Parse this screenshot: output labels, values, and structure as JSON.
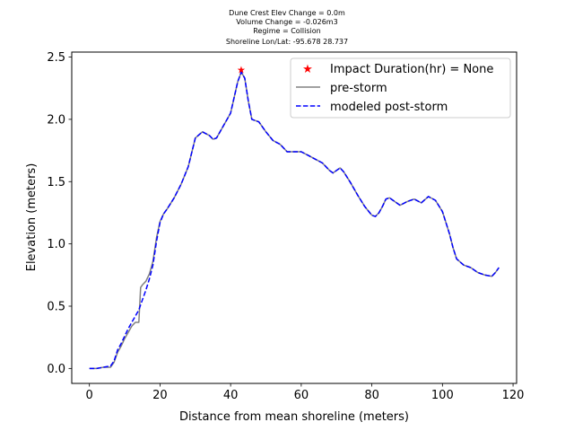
{
  "chart_data": {
    "type": "line",
    "title_lines": [
      "Dune Crest Elev Change = 0.0m",
      "Volume Change = -0.026m3",
      "Regime = Collision",
      "Shoreline Lon/Lat: -95.678 28.737"
    ],
    "xlabel": "Distance from mean shoreline (meters)",
    "ylabel": "Elevation (meters)",
    "xlim": [
      -5,
      121
    ],
    "ylim": [
      -0.12,
      2.54
    ],
    "xticks": [
      0,
      20,
      40,
      60,
      80,
      100,
      120
    ],
    "yticks": [
      0.0,
      0.5,
      1.0,
      1.5,
      2.0,
      2.5
    ],
    "xtick_labels": [
      "0",
      "20",
      "40",
      "60",
      "80",
      "100",
      "120"
    ],
    "ytick_labels": [
      "0.0",
      "0.5",
      "1.0",
      "1.5",
      "2.0",
      "2.5"
    ],
    "grid": false,
    "legend_position": "top-right",
    "impact_marker": {
      "name": "Impact Duration(hr) = None",
      "x": 43,
      "y": 2.4,
      "color": "#ff0000"
    },
    "series": [
      {
        "name": "pre-storm",
        "color": "#808080",
        "style": "solid",
        "x": [
          0,
          2,
          4,
          6,
          7,
          8,
          9,
          10,
          11,
          12,
          13,
          14,
          14.5,
          15,
          16,
          17,
          18,
          19,
          20,
          21,
          22,
          24,
          26,
          28,
          30,
          32,
          34,
          35,
          36,
          38,
          40,
          42,
          43,
          44,
          45,
          46,
          48,
          50,
          52,
          54,
          56,
          58,
          60,
          62,
          64,
          66,
          68,
          69,
          70,
          71,
          72,
          74,
          76,
          78,
          80,
          81,
          82,
          83,
          84,
          85,
          86,
          88,
          90,
          92,
          94,
          96,
          98,
          100,
          102,
          103,
          104,
          106,
          108,
          110,
          112,
          114,
          115,
          116
        ],
        "values": [
          0.0,
          0.0,
          0.01,
          0.01,
          0.05,
          0.13,
          0.18,
          0.24,
          0.29,
          0.34,
          0.37,
          0.37,
          0.65,
          0.67,
          0.7,
          0.76,
          0.86,
          1.05,
          1.18,
          1.24,
          1.28,
          1.37,
          1.48,
          1.62,
          1.85,
          1.9,
          1.87,
          1.84,
          1.85,
          1.95,
          2.05,
          2.3,
          2.38,
          2.33,
          2.15,
          2.0,
          1.98,
          1.9,
          1.83,
          1.8,
          1.74,
          1.74,
          1.74,
          1.71,
          1.68,
          1.65,
          1.59,
          1.57,
          1.59,
          1.61,
          1.58,
          1.49,
          1.39,
          1.3,
          1.23,
          1.22,
          1.25,
          1.3,
          1.36,
          1.37,
          1.35,
          1.31,
          1.34,
          1.36,
          1.33,
          1.38,
          1.35,
          1.26,
          1.08,
          0.97,
          0.88,
          0.83,
          0.81,
          0.77,
          0.75,
          0.74,
          0.77,
          0.81
        ]
      },
      {
        "name": "modeled post-storm",
        "color": "#0000ff",
        "style": "dashed",
        "x": [
          0,
          2,
          4,
          6,
          7,
          8,
          9,
          10,
          11,
          12,
          13,
          14,
          15,
          16,
          17,
          18,
          19,
          20,
          21,
          22,
          24,
          26,
          28,
          30,
          32,
          34,
          35,
          36,
          38,
          40,
          42,
          43,
          44,
          45,
          46,
          48,
          50,
          52,
          54,
          56,
          58,
          60,
          62,
          64,
          66,
          68,
          69,
          70,
          71,
          72,
          74,
          76,
          78,
          80,
          81,
          82,
          83,
          84,
          85,
          86,
          88,
          90,
          92,
          94,
          96,
          98,
          100,
          102,
          103,
          104,
          106,
          108,
          110,
          112,
          114,
          115,
          116
        ],
        "values": [
          0.0,
          0.0,
          0.01,
          0.02,
          0.06,
          0.15,
          0.2,
          0.26,
          0.32,
          0.37,
          0.42,
          0.47,
          0.55,
          0.63,
          0.72,
          0.83,
          1.02,
          1.17,
          1.24,
          1.28,
          1.37,
          1.48,
          1.62,
          1.85,
          1.9,
          1.87,
          1.84,
          1.85,
          1.95,
          2.05,
          2.3,
          2.38,
          2.33,
          2.15,
          2.0,
          1.98,
          1.9,
          1.83,
          1.8,
          1.74,
          1.74,
          1.74,
          1.71,
          1.68,
          1.65,
          1.59,
          1.57,
          1.59,
          1.61,
          1.58,
          1.49,
          1.39,
          1.3,
          1.23,
          1.22,
          1.25,
          1.3,
          1.36,
          1.37,
          1.35,
          1.31,
          1.34,
          1.36,
          1.33,
          1.38,
          1.35,
          1.26,
          1.08,
          0.97,
          0.88,
          0.83,
          0.81,
          0.77,
          0.75,
          0.74,
          0.77,
          0.81
        ]
      }
    ]
  }
}
